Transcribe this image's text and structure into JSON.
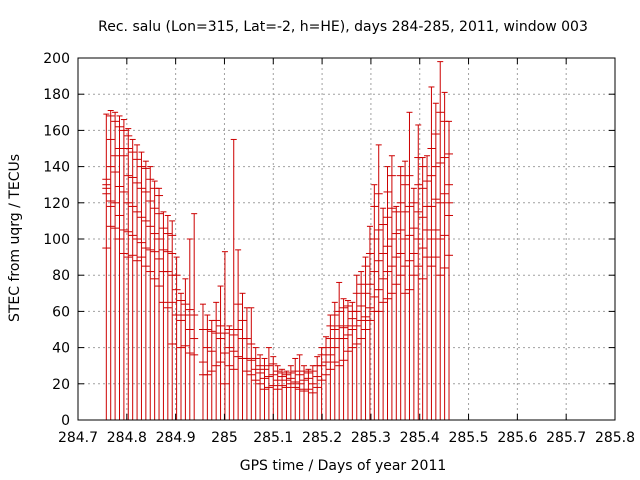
{
  "chart_data": {
    "type": "scatter",
    "style": "vertical-error-bars",
    "title": "Rec. salu (Lon=315, Lat=-2, h=HE), days 284-285, 2011, window 003",
    "xlabel": "GPS time / Days of year 2011",
    "ylabel": "STEC from uqrg / TECUs",
    "xlim": [
      284.7,
      285.8
    ],
    "ylim": [
      0,
      200
    ],
    "xticks": [
      284.7,
      284.8,
      284.9,
      285.0,
      285.1,
      285.2,
      285.3,
      285.4,
      285.5,
      285.6,
      285.7,
      285.8
    ],
    "xtick_labels": [
      "284.7",
      "284.8",
      "284.9",
      "285",
      "285.1",
      "285.2",
      "285.3",
      "285.4",
      "285.5",
      "285.6",
      "285.7",
      "285.8"
    ],
    "yticks": [
      0,
      20,
      40,
      60,
      80,
      100,
      120,
      140,
      160,
      180,
      200
    ],
    "ytick_labels": [
      "0",
      "20",
      "40",
      "60",
      "80",
      "100",
      "120",
      "140",
      "160",
      "180",
      "200"
    ],
    "grid": true,
    "color": "#cc0000",
    "series": [
      {
        "points": [
          {
            "x": 284.758,
            "ylow": 0,
            "yhigh": 169,
            "marks": [
              95,
              125,
              128,
              130,
              133
            ]
          },
          {
            "x": 284.767,
            "ylow": 0,
            "yhigh": 171,
            "marks": [
              107,
              118,
              121,
              140,
              155,
              168
            ]
          },
          {
            "x": 284.776,
            "ylow": 0,
            "yhigh": 170,
            "marks": [
              106,
              120,
              137,
              146,
              165
            ]
          },
          {
            "x": 284.785,
            "ylow": 0,
            "yhigh": 168,
            "marks": [
              100,
              113,
              129,
              150,
              162
            ]
          },
          {
            "x": 284.794,
            "ylow": 0,
            "yhigh": 166,
            "marks": [
              92,
              105,
              126,
              146,
              160
            ]
          },
          {
            "x": 284.803,
            "ylow": 0,
            "yhigh": 161,
            "marks": [
              90,
              104,
              120,
              135,
              150,
              157
            ]
          },
          {
            "x": 284.812,
            "ylow": 0,
            "yhigh": 155,
            "marks": [
              91,
              102,
              118,
              134,
              148
            ]
          },
          {
            "x": 284.821,
            "ylow": 0,
            "yhigh": 152,
            "marks": [
              88,
              100,
              115,
              131,
              144
            ]
          },
          {
            "x": 284.83,
            "ylow": 0,
            "yhigh": 148,
            "marks": [
              90,
              98,
              112,
              128,
              140
            ]
          },
          {
            "x": 284.839,
            "ylow": 0,
            "yhigh": 143,
            "marks": [
              85,
              95,
              110,
              126,
              139
            ]
          },
          {
            "x": 284.848,
            "ylow": 0,
            "yhigh": 140,
            "marks": [
              82,
              94,
              107,
              121,
              133
            ]
          },
          {
            "x": 284.857,
            "ylow": 0,
            "yhigh": 132,
            "marks": [
              78,
              93,
              103,
              117,
              128
            ]
          },
          {
            "x": 284.866,
            "ylow": 0,
            "yhigh": 128,
            "marks": [
              74,
              89,
              100,
              114,
              124
            ]
          },
          {
            "x": 284.875,
            "ylow": 0,
            "yhigh": 115,
            "marks": [
              65,
              82,
              94,
              106
            ]
          },
          {
            "x": 284.884,
            "ylow": 0,
            "yhigh": 113,
            "marks": [
              62,
              82,
              93,
              103
            ]
          },
          {
            "x": 284.893,
            "ylow": 0,
            "yhigh": 110,
            "marks": [
              42,
              65,
              80,
              92,
              102
            ]
          },
          {
            "x": 284.902,
            "ylow": 0,
            "yhigh": 90,
            "marks": [
              58,
              72,
              80
            ]
          },
          {
            "x": 284.911,
            "ylow": 0,
            "yhigh": 70,
            "marks": [
              40,
              55,
              66
            ]
          },
          {
            "x": 284.92,
            "ylow": 0,
            "yhigh": 78,
            "marks": [
              41,
              58,
              64
            ]
          },
          {
            "x": 284.929,
            "ylow": 0,
            "yhigh": 100,
            "marks": [
              37,
              50,
              61
            ]
          },
          {
            "x": 284.938,
            "ylow": 0,
            "yhigh": 114,
            "marks": [
              36,
              45,
              58
            ]
          },
          {
            "x": 284.956,
            "ylow": 0,
            "yhigh": 64,
            "marks": [
              25,
              32,
              50
            ]
          },
          {
            "x": 284.965,
            "ylow": 0,
            "yhigh": 58,
            "marks": [
              25,
              40,
              50
            ]
          },
          {
            "x": 284.974,
            "ylow": 0,
            "yhigh": 55,
            "marks": [
              27,
              38,
              49
            ]
          },
          {
            "x": 284.983,
            "ylow": 0,
            "yhigh": 65,
            "marks": [
              30,
              48,
              55
            ]
          },
          {
            "x": 284.992,
            "ylow": 0,
            "yhigh": 74,
            "marks": [
              32,
              45,
              52
            ]
          },
          {
            "x": 285.001,
            "ylow": 0,
            "yhigh": 93,
            "marks": [
              20,
              37,
              48
            ]
          },
          {
            "x": 285.01,
            "ylow": 0,
            "yhigh": 52,
            "marks": [
              30,
              40,
              50
            ]
          },
          {
            "x": 285.019,
            "ylow": 0,
            "yhigh": 155,
            "marks": [
              28,
              38,
              47
            ]
          },
          {
            "x": 285.028,
            "ylow": 0,
            "yhigh": 94,
            "marks": [
              35,
              50,
              64
            ]
          },
          {
            "x": 285.037,
            "ylow": 0,
            "yhigh": 70,
            "marks": [
              34,
              45,
              55
            ]
          },
          {
            "x": 285.046,
            "ylow": 0,
            "yhigh": 62,
            "marks": [
              27,
              34,
              45
            ]
          },
          {
            "x": 285.055,
            "ylow": 0,
            "yhigh": 62,
            "marks": [
              25,
              33,
              42
            ]
          },
          {
            "x": 285.064,
            "ylow": 0,
            "yhigh": 40,
            "marks": [
              22,
              28,
              34
            ]
          },
          {
            "x": 285.073,
            "ylow": 0,
            "yhigh": 36,
            "marks": [
              20,
              26,
              30
            ]
          },
          {
            "x": 285.082,
            "ylow": 0,
            "yhigh": 34,
            "marks": [
              17,
              23,
              28
            ]
          },
          {
            "x": 285.091,
            "ylow": 0,
            "yhigh": 40,
            "marks": [
              18,
              24,
              30
            ]
          },
          {
            "x": 285.1,
            "ylow": 0,
            "yhigh": 35,
            "marks": [
              19,
              25,
              31
            ]
          },
          {
            "x": 285.109,
            "ylow": 0,
            "yhigh": 30,
            "marks": [
              17,
              22,
              27
            ]
          },
          {
            "x": 285.118,
            "ylow": 0,
            "yhigh": 28,
            "marks": [
              19,
              24,
              26
            ]
          },
          {
            "x": 285.127,
            "ylow": 0,
            "yhigh": 27,
            "marks": [
              18,
              22,
              25
            ]
          },
          {
            "x": 285.136,
            "ylow": 0,
            "yhigh": 30,
            "marks": [
              20,
              23,
              26
            ]
          },
          {
            "x": 285.145,
            "ylow": 0,
            "yhigh": 34,
            "marks": [
              18,
              21,
              27
            ]
          },
          {
            "x": 285.154,
            "ylow": 0,
            "yhigh": 36,
            "marks": [
              17,
              20,
              25
            ]
          },
          {
            "x": 285.163,
            "ylow": 0,
            "yhigh": 30,
            "marks": [
              16,
              22,
              27
            ]
          },
          {
            "x": 285.172,
            "ylow": 0,
            "yhigh": 28,
            "marks": [
              17,
              23,
              26
            ]
          },
          {
            "x": 285.181,
            "ylow": 0,
            "yhigh": 30,
            "marks": [
              15,
              20,
              27
            ]
          },
          {
            "x": 285.19,
            "ylow": 0,
            "yhigh": 35,
            "marks": [
              18,
              24,
              30
            ]
          },
          {
            "x": 285.199,
            "ylow": 0,
            "yhigh": 40,
            "marks": [
              22,
              30,
              36
            ]
          },
          {
            "x": 285.208,
            "ylow": 0,
            "yhigh": 46,
            "marks": [
              25,
              32,
              40
            ]
          },
          {
            "x": 285.217,
            "ylow": 0,
            "yhigh": 58,
            "marks": [
              28,
              36,
              45,
              52
            ]
          },
          {
            "x": 285.226,
            "ylow": 0,
            "yhigh": 65,
            "marks": [
              32,
              40,
              50,
              58
            ]
          },
          {
            "x": 285.235,
            "ylow": 0,
            "yhigh": 76,
            "marks": [
              30,
              45,
              52,
              60
            ]
          },
          {
            "x": 285.244,
            "ylow": 0,
            "yhigh": 67,
            "marks": [
              33,
              45,
              51,
              62
            ]
          },
          {
            "x": 285.253,
            "ylow": 0,
            "yhigh": 66,
            "marks": [
              38,
              47,
              52,
              63
            ]
          },
          {
            "x": 285.262,
            "ylow": 0,
            "yhigh": 65,
            "marks": [
              40,
              50,
              56,
              60
            ]
          },
          {
            "x": 285.271,
            "ylow": 0,
            "yhigh": 80,
            "marks": [
              42,
              52,
              60,
              70
            ]
          },
          {
            "x": 285.28,
            "ylow": 0,
            "yhigh": 82,
            "marks": [
              45,
              55,
              63,
              75
            ]
          },
          {
            "x": 285.289,
            "ylow": 0,
            "yhigh": 90,
            "marks": [
              50,
              57,
              70,
              85
            ]
          },
          {
            "x": 285.298,
            "ylow": 0,
            "yhigh": 107,
            "marks": [
              55,
              62,
              75,
              92
            ]
          },
          {
            "x": 285.307,
            "ylow": 0,
            "yhigh": 130,
            "marks": [
              60,
              68,
              82,
              100,
              118
            ]
          },
          {
            "x": 285.316,
            "ylow": 0,
            "yhigh": 152,
            "marks": [
              60,
              72,
              88,
              105,
              125
            ]
          },
          {
            "x": 285.325,
            "ylow": 0,
            "yhigh": 117,
            "marks": [
              65,
              78,
              92,
              108
            ]
          },
          {
            "x": 285.334,
            "ylow": 0,
            "yhigh": 140,
            "marks": [
              67,
              82,
              96,
              112,
              126
            ]
          },
          {
            "x": 285.343,
            "ylow": 0,
            "yhigh": 146,
            "marks": [
              70,
              85,
              100,
              117,
              135
            ]
          },
          {
            "x": 285.352,
            "ylow": 0,
            "yhigh": 118,
            "marks": [
              75,
              90,
              103,
              115
            ]
          },
          {
            "x": 285.361,
            "ylow": 0,
            "yhigh": 140,
            "marks": [
              80,
              92,
              105,
              120,
              135
            ]
          },
          {
            "x": 285.37,
            "ylow": 0,
            "yhigh": 143,
            "marks": [
              70,
              85,
              100,
              115,
              130
            ]
          },
          {
            "x": 285.379,
            "ylow": 0,
            "yhigh": 170,
            "marks": [
              72,
              88,
              102,
              118,
              135
            ]
          },
          {
            "x": 285.388,
            "ylow": 0,
            "yhigh": 128,
            "marks": [
              80,
              92,
              106,
              120
            ]
          },
          {
            "x": 285.397,
            "ylow": 0,
            "yhigh": 163,
            "marks": [
              85,
              100,
              115,
              130,
              145
            ]
          },
          {
            "x": 285.406,
            "ylow": 0,
            "yhigh": 145,
            "marks": [
              78,
              95,
              112,
              128,
              140
            ]
          },
          {
            "x": 285.415,
            "ylow": 0,
            "yhigh": 146,
            "marks": [
              90,
              105,
              118,
              132
            ]
          },
          {
            "x": 285.424,
            "ylow": 0,
            "yhigh": 184,
            "marks": [
              85,
              100,
              118,
              135,
              150
            ]
          },
          {
            "x": 285.433,
            "ylow": 0,
            "yhigh": 175,
            "marks": [
              90,
              105,
              122,
              140,
              158
            ]
          },
          {
            "x": 285.442,
            "ylow": 0,
            "yhigh": 198,
            "marks": [
              80,
              100,
              120,
              142,
              170
            ]
          },
          {
            "x": 285.451,
            "ylow": 0,
            "yhigh": 181,
            "marks": [
              84,
              102,
              125,
              145,
              165
            ]
          },
          {
            "x": 285.46,
            "ylow": 0,
            "yhigh": 165,
            "marks": [
              91,
              113,
              120,
              130,
              147
            ]
          }
        ]
      }
    ]
  }
}
